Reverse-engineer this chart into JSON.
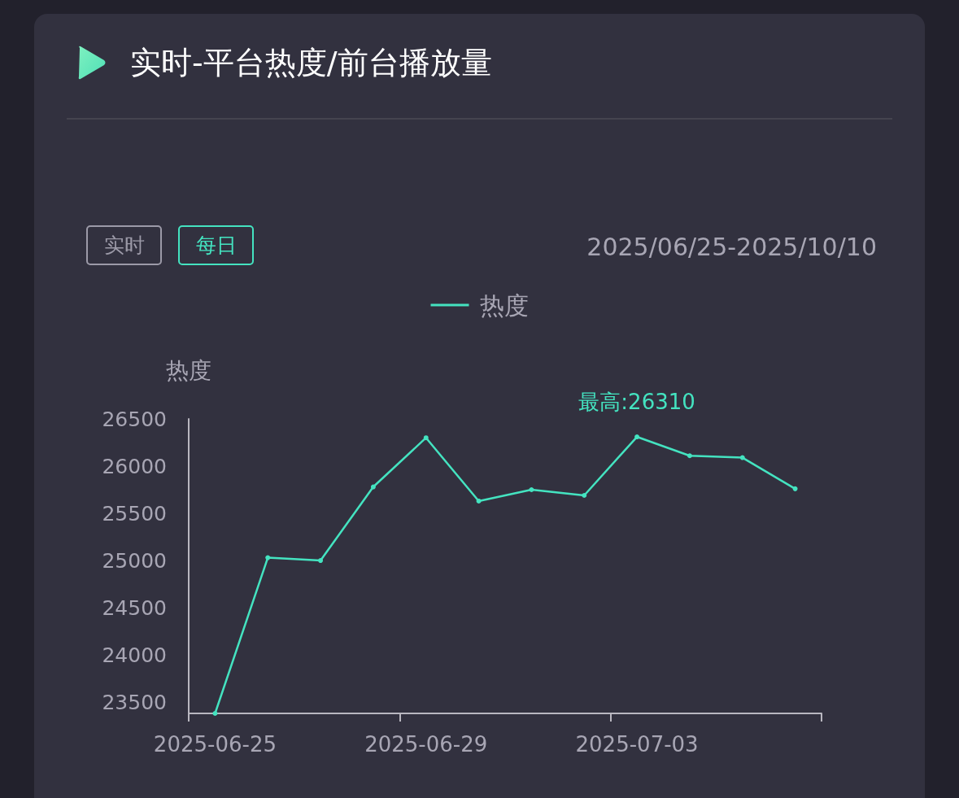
{
  "chart_data": {
    "type": "line",
    "title": "实时-平台热度/前台播放量",
    "subtitle": "2025/06/25-2025/10/10",
    "ylabel": "热度",
    "categories": [
      "2025-06-25",
      null,
      null,
      null,
      "2025-06-29",
      null,
      null,
      null,
      "2025-07-03",
      null,
      null,
      null
    ],
    "series": [
      {
        "name": "热度",
        "color": "#44e3c0",
        "values": [
          23380,
          25030,
          25000,
          25780,
          26300,
          25630,
          25750,
          25690,
          26310,
          26110,
          26090,
          25760
        ]
      }
    ],
    "ylim": [
      23380,
      26500
    ],
    "yticks": [
      23500,
      24000,
      24500,
      25000,
      25500,
      26000,
      26500
    ],
    "legend": "top",
    "marker": "circle",
    "annotations": [
      {
        "text": "最高:26310",
        "x": "2025-07-03",
        "y": 26310
      },
      "实时",
      "每日"
    ]
  }
}
